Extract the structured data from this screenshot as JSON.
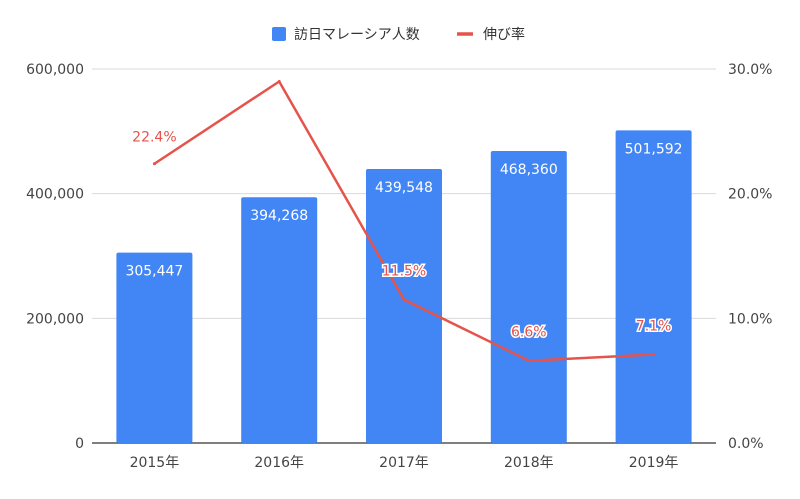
{
  "chart_data": {
    "type": "bar",
    "categories": [
      "2015年",
      "2016年",
      "2017年",
      "2018年",
      "2019年"
    ],
    "series": [
      {
        "name": "訪日マレーシア人数",
        "type": "bar",
        "axis": "left",
        "color": "#4285f4",
        "values": [
          305447,
          394268,
          439548,
          468360,
          501592
        ],
        "labels": [
          "305,447",
          "394,268",
          "439,548",
          "468,360",
          "501,592"
        ]
      },
      {
        "name": "伸び率",
        "type": "line",
        "axis": "right",
        "color": "#e5534b",
        "values": [
          22.4,
          29.0,
          11.5,
          6.6,
          7.1
        ],
        "labels": [
          "22.4%",
          "",
          "11.5%",
          "6.6%",
          "7.1%"
        ]
      }
    ],
    "y_left": {
      "min": 0,
      "max": 600000,
      "ticks": [
        0,
        200000,
        400000,
        600000
      ],
      "tick_labels": [
        "0",
        "200,000",
        "400,000",
        "600,000"
      ]
    },
    "y_right": {
      "min": 0,
      "max": 30,
      "ticks": [
        0,
        10,
        20,
        30
      ],
      "tick_labels": [
        "0.0%",
        "10.0%",
        "20.0%",
        "30.0%"
      ]
    },
    "grid": true,
    "legend_position": "top-center",
    "gridline_color": "#d9d9d9"
  }
}
